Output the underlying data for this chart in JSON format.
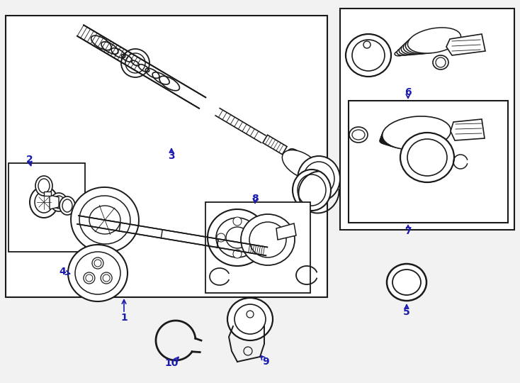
{
  "bg_color": "#f2f2f2",
  "line_color": "#1a1a1a",
  "label_color": "#1a1ab0",
  "arrow_color": "#1a1ab0",
  "white": "#ffffff",
  "figw": 7.34,
  "figh": 5.4,
  "dpi": 100
}
